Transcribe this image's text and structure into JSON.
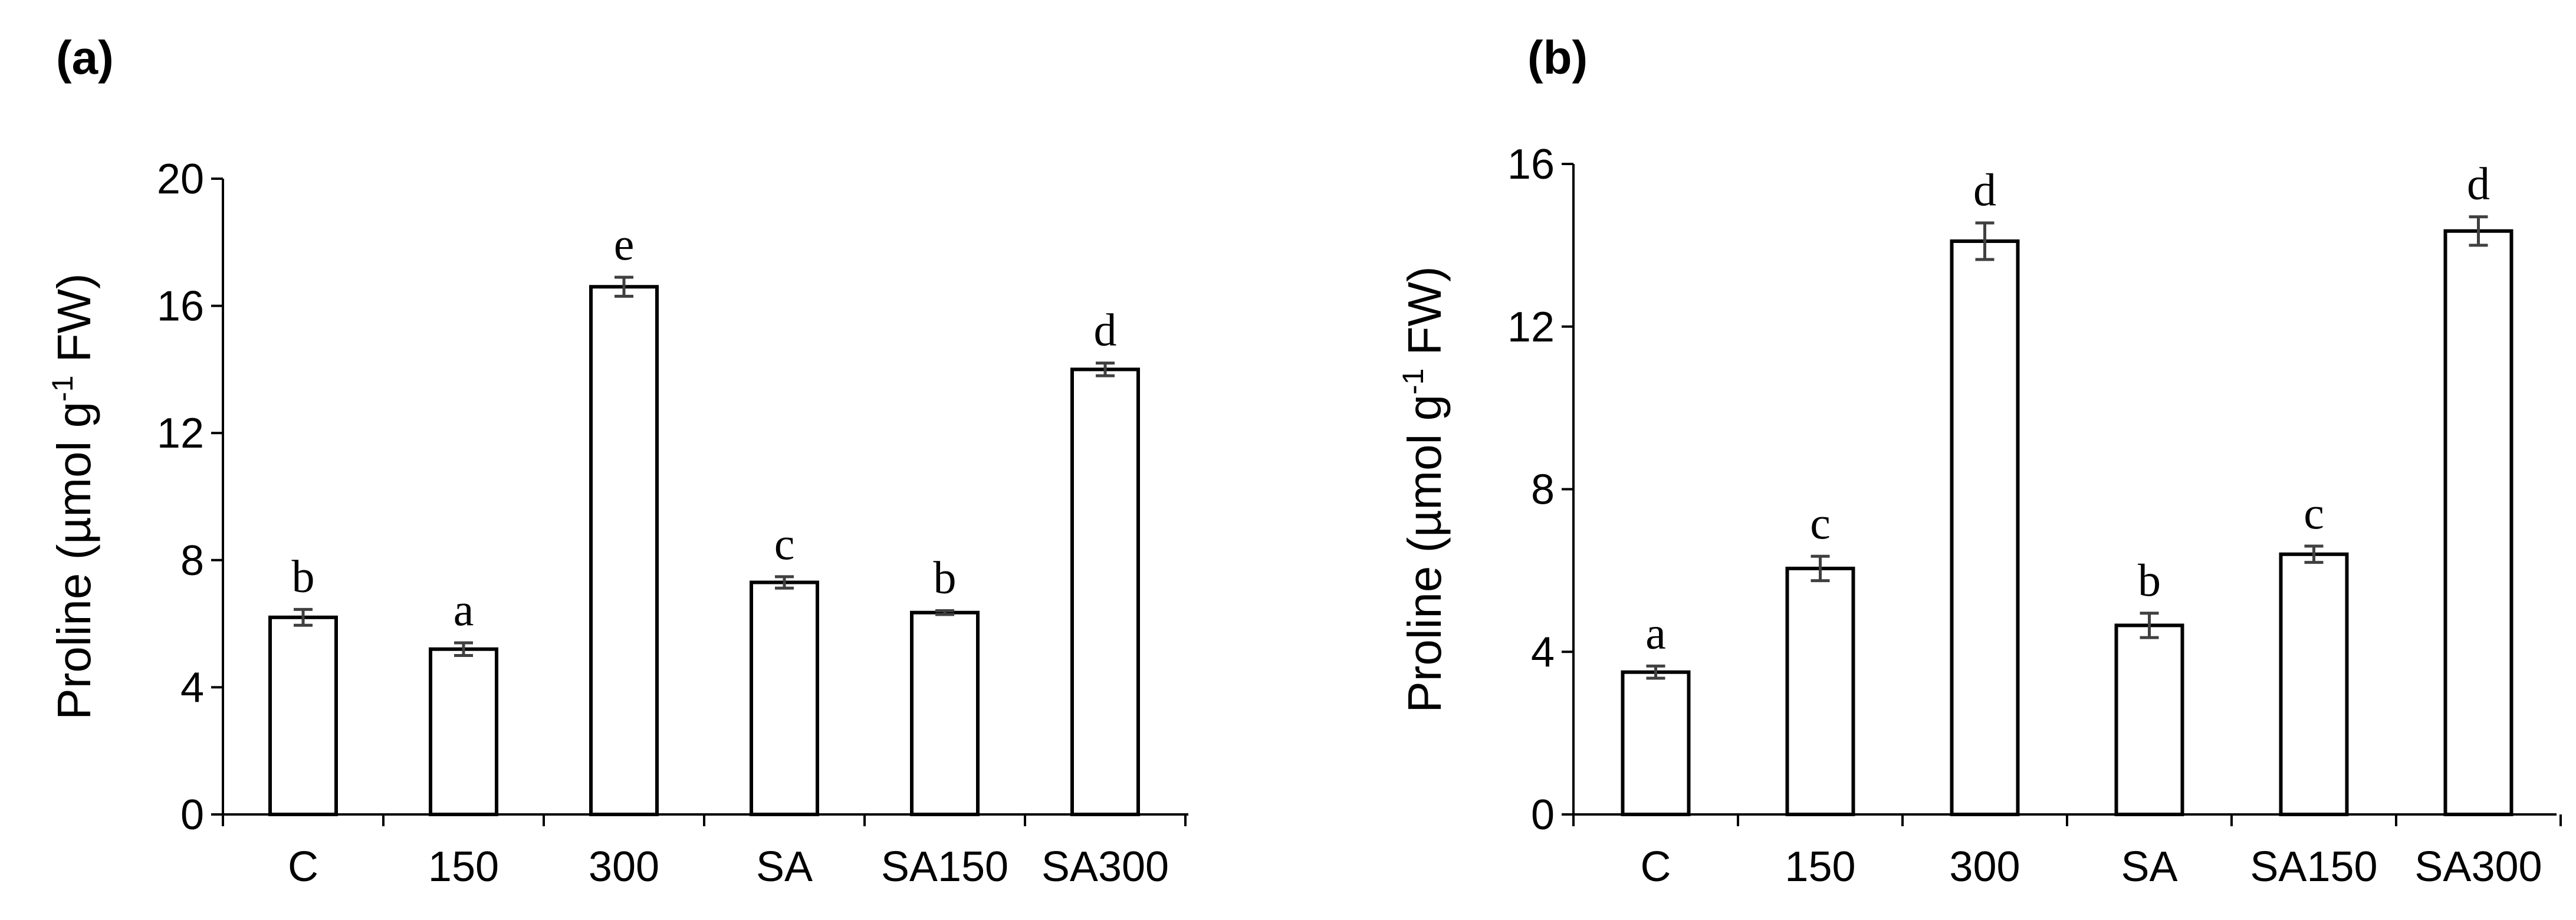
{
  "chart_data": [
    {
      "type": "bar",
      "panel_label": "(a)",
      "categories": [
        "C",
        "150",
        "300",
        "SA",
        "SA150",
        "SA300"
      ],
      "values": [
        6.2,
        5.2,
        16.6,
        7.3,
        6.35,
        14.0
      ],
      "errors": [
        0.25,
        0.2,
        0.3,
        0.18,
        0.06,
        0.2
      ],
      "significance": [
        "b",
        "a",
        "e",
        "c",
        "b",
        "d"
      ],
      "ylabel_main": "Proline (µmol g",
      "ylabel_sup": "-1",
      "ylabel_tail": " FW)",
      "ylim": [
        0,
        20
      ],
      "yticks": [
        "0",
        "4",
        "8",
        "12",
        "16",
        "20"
      ],
      "grid": false,
      "legend": "none",
      "bar_color": "#ffffff",
      "edge_color": "#000000"
    },
    {
      "type": "bar",
      "panel_label": "(b)",
      "categories": [
        "C",
        "150",
        "300",
        "SA",
        "SA150",
        "SA300"
      ],
      "values": [
        3.5,
        6.05,
        14.1,
        4.65,
        6.4,
        14.35
      ],
      "errors": [
        0.15,
        0.3,
        0.45,
        0.3,
        0.2,
        0.35
      ],
      "significance": [
        "a",
        "c",
        "d",
        "b",
        "c",
        "d"
      ],
      "ylabel_main": "Proline (µmol g",
      "ylabel_sup": "-1",
      "ylabel_tail": " FW)",
      "ylim": [
        0,
        16
      ],
      "yticks": [
        "0",
        "4",
        "8",
        "12",
        "16"
      ],
      "grid": false,
      "legend": "none",
      "bar_color": "#ffffff",
      "edge_color": "#000000"
    }
  ]
}
